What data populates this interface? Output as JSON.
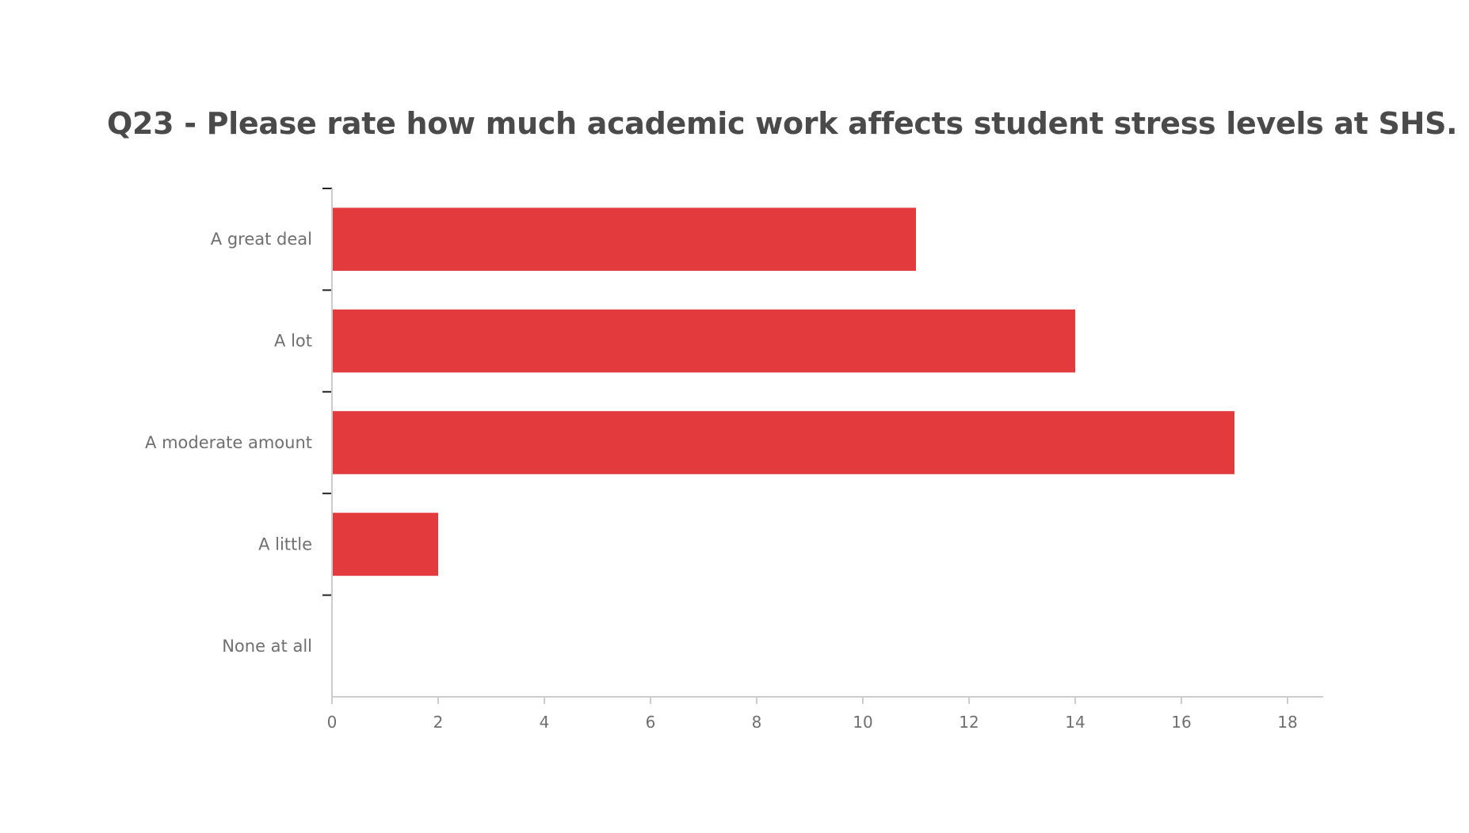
{
  "chart_data": {
    "type": "bar",
    "orientation": "horizontal",
    "title": "Q23 - Please rate how much academic work affects student stress levels at SHS.",
    "categories": [
      "A great deal",
      "A lot",
      "A moderate amount",
      "A little",
      "None at all"
    ],
    "values": [
      11,
      14,
      17,
      2,
      0
    ],
    "xlim": [
      0,
      18
    ],
    "xticks": [
      0,
      2,
      4,
      6,
      8,
      10,
      12,
      14,
      16,
      18
    ],
    "xlabel": "",
    "ylabel": "",
    "grid": false,
    "legend": "none",
    "bar_color": "#e33b3d",
    "axis_color": "#cccccc",
    "text_color": "#6f6f6f"
  }
}
